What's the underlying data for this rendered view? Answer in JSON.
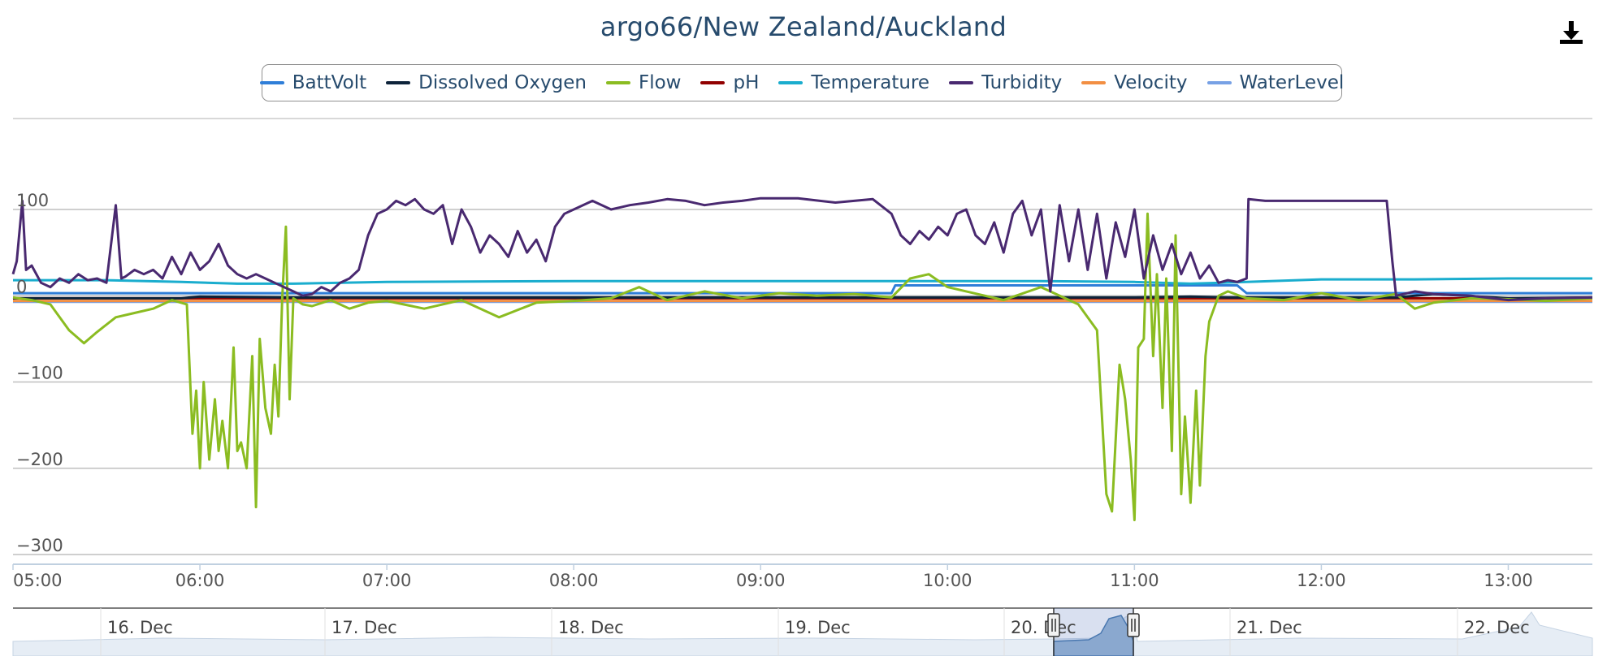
{
  "header": {
    "title": "argo66/New Zealand/Auckland",
    "download_icon": "download-icon"
  },
  "legend": {
    "items": [
      {
        "label": "BattVolt",
        "color": "#2f7ed8"
      },
      {
        "label": "Dissolved Oxygen",
        "color": "#0d233a"
      },
      {
        "label": "Flow",
        "color": "#8bbc21"
      },
      {
        "label": "pH",
        "color": "#910000"
      },
      {
        "label": "Temperature",
        "color": "#1aadce"
      },
      {
        "label": "Turbidity",
        "color": "#492970"
      },
      {
        "label": "Velocity",
        "color": "#f28f43"
      },
      {
        "label": "WaterLevel",
        "color": "#77a1e5"
      }
    ]
  },
  "chart_data": {
    "type": "line",
    "title": "argo66/New Zealand/Auckland",
    "x_unit": "hours",
    "xlim": [
      5.0,
      13.45
    ],
    "ylim": [
      -300,
      135
    ],
    "y_ticks": [
      {
        "value": 100,
        "label": "100"
      },
      {
        "value": 0,
        "label": "0"
      },
      {
        "value": -100,
        "label": "−100"
      },
      {
        "value": -200,
        "label": "−200"
      },
      {
        "value": -300,
        "label": "−300"
      }
    ],
    "x_ticks": [
      {
        "value": 5,
        "label": "05:00"
      },
      {
        "value": 6,
        "label": "06:00"
      },
      {
        "value": 7,
        "label": "07:00"
      },
      {
        "value": 8,
        "label": "08:00"
      },
      {
        "value": 9,
        "label": "09:00"
      },
      {
        "value": 10,
        "label": "10:00"
      },
      {
        "value": 11,
        "label": "11:00"
      },
      {
        "value": 12,
        "label": "12:00"
      },
      {
        "value": 13,
        "label": "13:00"
      }
    ],
    "grid": true,
    "legend_position": "top-center",
    "series": [
      {
        "name": "BattVolt",
        "color": "#2f7ed8",
        "x": [
          5.0,
          9.7,
          9.72,
          11.55,
          11.6,
          13.45
        ],
        "y": [
          3,
          3,
          12,
          12,
          3,
          3
        ]
      },
      {
        "name": "Dissolved Oxygen",
        "color": "#0d233a",
        "x": [
          5.0,
          5.9,
          6.0,
          6.5,
          7.0,
          10.5,
          11.0,
          11.3,
          11.5,
          12.4,
          12.6,
          13.0,
          13.45
        ],
        "y": [
          -3,
          -3,
          -1,
          -2,
          -2,
          -2,
          -2,
          -1,
          -2,
          -2,
          2,
          -3,
          -2
        ]
      },
      {
        "name": "Flow",
        "color": "#8bbc21",
        "x": [
          5.0,
          5.1,
          5.2,
          5.3,
          5.38,
          5.45,
          5.55,
          5.65,
          5.75,
          5.85,
          5.93,
          5.96,
          5.98,
          6.0,
          6.02,
          6.05,
          6.08,
          6.1,
          6.12,
          6.15,
          6.18,
          6.2,
          6.22,
          6.25,
          6.28,
          6.3,
          6.32,
          6.35,
          6.38,
          6.4,
          6.42,
          6.44,
          6.46,
          6.48,
          6.5,
          6.55,
          6.6,
          6.7,
          6.8,
          6.9,
          7.0,
          7.2,
          7.4,
          7.6,
          7.8,
          8.0,
          8.2,
          8.35,
          8.5,
          8.7,
          8.9,
          9.1,
          9.3,
          9.5,
          9.7,
          9.8,
          9.9,
          10.0,
          10.1,
          10.3,
          10.5,
          10.7,
          10.8,
          10.85,
          10.88,
          10.92,
          10.95,
          10.98,
          11.0,
          11.02,
          11.05,
          11.07,
          11.1,
          11.12,
          11.15,
          11.17,
          11.2,
          11.22,
          11.25,
          11.27,
          11.3,
          11.33,
          11.35,
          11.38,
          11.4,
          11.45,
          11.5,
          11.6,
          11.8,
          12.0,
          12.2,
          12.4,
          12.5,
          12.6,
          12.8,
          13.0,
          13.2,
          13.45
        ],
        "y": [
          -2,
          -5,
          -10,
          -40,
          -55,
          -42,
          -25,
          -20,
          -15,
          -5,
          -10,
          -160,
          -110,
          -200,
          -100,
          -190,
          -120,
          -180,
          -145,
          -200,
          -60,
          -180,
          -170,
          -200,
          -70,
          -245,
          -50,
          -130,
          -160,
          -80,
          -140,
          -5,
          80,
          -120,
          -3,
          -10,
          -12,
          -5,
          -15,
          -8,
          -6,
          -15,
          -5,
          -25,
          -8,
          -6,
          -3,
          10,
          -5,
          5,
          -3,
          3,
          0,
          2,
          -2,
          20,
          25,
          10,
          5,
          -5,
          10,
          -10,
          -40,
          -230,
          -250,
          -80,
          -120,
          -190,
          -260,
          -60,
          -50,
          95,
          -70,
          25,
          -130,
          20,
          -180,
          70,
          -230,
          -140,
          -240,
          -110,
          -220,
          -70,
          -30,
          0,
          5,
          -3,
          -5,
          3,
          -5,
          2,
          -15,
          -8,
          -3,
          -4,
          -6,
          -3
        ]
      },
      {
        "name": "pH",
        "color": "#910000",
        "x": [
          5.0,
          13.45
        ],
        "y": [
          -3,
          -3
        ]
      },
      {
        "name": "Temperature",
        "color": "#1aadce",
        "x": [
          5.0,
          5.5,
          5.9,
          6.2,
          6.5,
          7.0,
          8.0,
          9.0,
          10.0,
          10.5,
          11.0,
          11.3,
          11.6,
          12.0,
          12.5,
          13.0,
          13.45
        ],
        "y": [
          18,
          18,
          16,
          14,
          14,
          16,
          17,
          17,
          17,
          17,
          16,
          14,
          16,
          19,
          19,
          20,
          20
        ]
      },
      {
        "name": "Turbidity",
        "color": "#492970",
        "x": [
          5.0,
          5.02,
          5.05,
          5.07,
          5.1,
          5.15,
          5.2,
          5.25,
          5.3,
          5.35,
          5.4,
          5.45,
          5.5,
          5.55,
          5.58,
          5.6,
          5.65,
          5.7,
          5.75,
          5.8,
          5.85,
          5.9,
          5.95,
          6.0,
          6.05,
          6.1,
          6.15,
          6.2,
          6.25,
          6.3,
          6.35,
          6.4,
          6.45,
          6.5,
          6.55,
          6.6,
          6.65,
          6.7,
          6.75,
          6.8,
          6.85,
          6.9,
          6.95,
          7.0,
          7.05,
          7.1,
          7.15,
          7.2,
          7.25,
          7.3,
          7.35,
          7.4,
          7.45,
          7.5,
          7.55,
          7.6,
          7.65,
          7.7,
          7.75,
          7.8,
          7.85,
          7.9,
          7.95,
          8.0,
          8.1,
          8.2,
          8.3,
          8.4,
          8.5,
          8.6,
          8.7,
          8.8,
          8.9,
          9.0,
          9.2,
          9.4,
          9.6,
          9.7,
          9.75,
          9.8,
          9.85,
          9.9,
          9.95,
          10.0,
          10.05,
          10.1,
          10.15,
          10.2,
          10.25,
          10.3,
          10.35,
          10.4,
          10.45,
          10.5,
          10.55,
          10.6,
          10.65,
          10.7,
          10.75,
          10.8,
          10.85,
          10.9,
          10.95,
          11.0,
          11.05,
          11.1,
          11.15,
          11.2,
          11.25,
          11.3,
          11.35,
          11.4,
          11.45,
          11.5,
          11.55,
          11.6,
          11.61,
          11.7,
          12.0,
          12.2,
          12.35,
          12.38,
          12.4,
          12.5,
          12.6,
          12.8,
          13.0,
          13.2,
          13.45
        ],
        "y": [
          25,
          40,
          110,
          30,
          35,
          15,
          10,
          20,
          15,
          25,
          18,
          20,
          15,
          105,
          20,
          22,
          30,
          25,
          30,
          20,
          45,
          25,
          50,
          30,
          40,
          60,
          35,
          25,
          20,
          25,
          20,
          15,
          10,
          5,
          0,
          2,
          10,
          5,
          15,
          20,
          30,
          70,
          95,
          100,
          110,
          105,
          112,
          100,
          95,
          105,
          60,
          100,
          80,
          50,
          70,
          60,
          45,
          75,
          50,
          65,
          40,
          80,
          95,
          100,
          110,
          100,
          105,
          108,
          112,
          110,
          105,
          108,
          110,
          113,
          113,
          108,
          112,
          95,
          70,
          60,
          75,
          65,
          80,
          70,
          95,
          100,
          70,
          60,
          85,
          50,
          95,
          110,
          70,
          100,
          5,
          105,
          40,
          100,
          30,
          95,
          20,
          85,
          45,
          100,
          20,
          70,
          30,
          60,
          25,
          50,
          20,
          35,
          15,
          18,
          16,
          20,
          112,
          110,
          110,
          110,
          110,
          40,
          0,
          5,
          2,
          0,
          -5,
          -3,
          -2
        ]
      },
      {
        "name": "Velocity",
        "color": "#f28f43",
        "x": [
          5.0,
          13.45
        ],
        "y": [
          -6,
          -6
        ]
      },
      {
        "name": "WaterLevel",
        "color": "#77a1e5",
        "x": [
          5.0,
          13.45
        ],
        "y": [
          -7,
          -7
        ]
      }
    ]
  },
  "navigator": {
    "labels": [
      "16. Dec",
      "17. Dec",
      "18. Dec",
      "19. Dec",
      "20. Dec",
      "21. Dec",
      "22. Dec"
    ]
  }
}
